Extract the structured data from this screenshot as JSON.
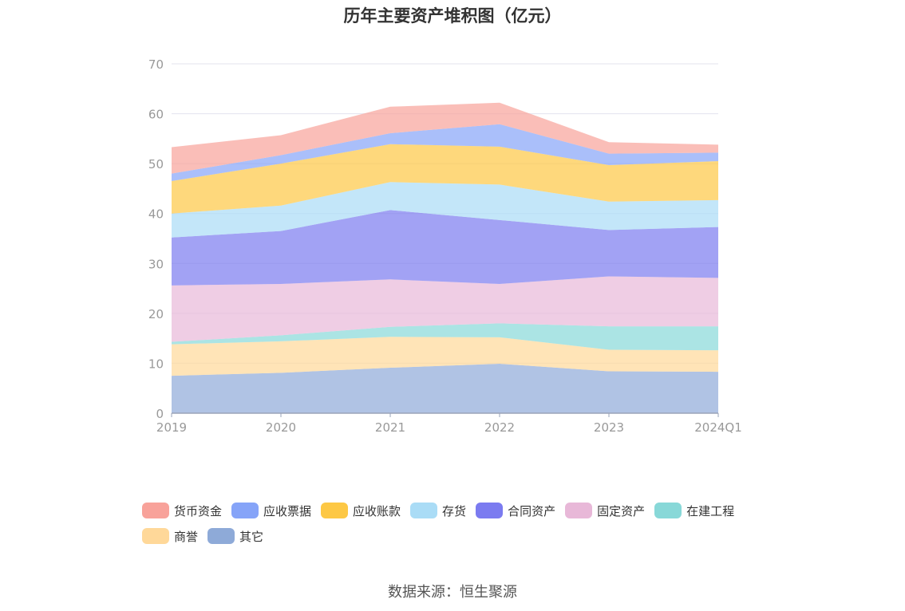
{
  "title": "历年主要资产堆积图（亿元）",
  "source": "数据来源：恒生聚源",
  "chart_data": {
    "type": "area",
    "stacked": true,
    "categories": [
      "2019",
      "2020",
      "2021",
      "2022",
      "2023",
      "2024Q1"
    ],
    "ylim": [
      0,
      70
    ],
    "yticks": [
      0,
      10,
      20,
      30,
      40,
      50,
      60,
      70
    ],
    "grid": true,
    "legend_position": "bottom",
    "series": [
      {
        "name": "其它",
        "color": "#8eaad8",
        "values": [
          7.5,
          8.1,
          9.1,
          9.9,
          8.4,
          8.3
        ]
      },
      {
        "name": "商誉",
        "color": "#ffd899",
        "values": [
          6.3,
          6.3,
          6.2,
          5.3,
          4.3,
          4.3
        ]
      },
      {
        "name": "在建工程",
        "color": "#88d8d8",
        "values": [
          0.5,
          1.2,
          2.0,
          2.8,
          4.7,
          4.8
        ]
      },
      {
        "name": "固定资产",
        "color": "#e8b8d8",
        "values": [
          11.3,
          10.3,
          9.5,
          7.9,
          10.0,
          9.7
        ]
      },
      {
        "name": "合同资产",
        "color": "#7b7bf0",
        "values": [
          9.6,
          10.6,
          13.9,
          12.8,
          9.3,
          10.2
        ]
      },
      {
        "name": "存货",
        "color": "#aadcf6",
        "values": [
          4.8,
          5.1,
          5.6,
          7.1,
          5.7,
          5.4
        ]
      },
      {
        "name": "应收账款",
        "color": "#fdc845",
        "values": [
          6.5,
          8.4,
          7.6,
          7.6,
          7.3,
          7.8
        ]
      },
      {
        "name": "应收票据",
        "color": "#86a4f8",
        "values": [
          1.5,
          1.7,
          2.2,
          4.5,
          2.3,
          1.7
        ]
      },
      {
        "name": "货币资金",
        "color": "#f8a29a",
        "values": [
          5.3,
          4.0,
          5.3,
          4.3,
          2.3,
          1.6
        ]
      }
    ],
    "legend_order": [
      "货币资金",
      "应收票据",
      "应收账款",
      "存货",
      "合同资产",
      "固定资产",
      "在建工程",
      "商誉",
      "其它"
    ]
  }
}
